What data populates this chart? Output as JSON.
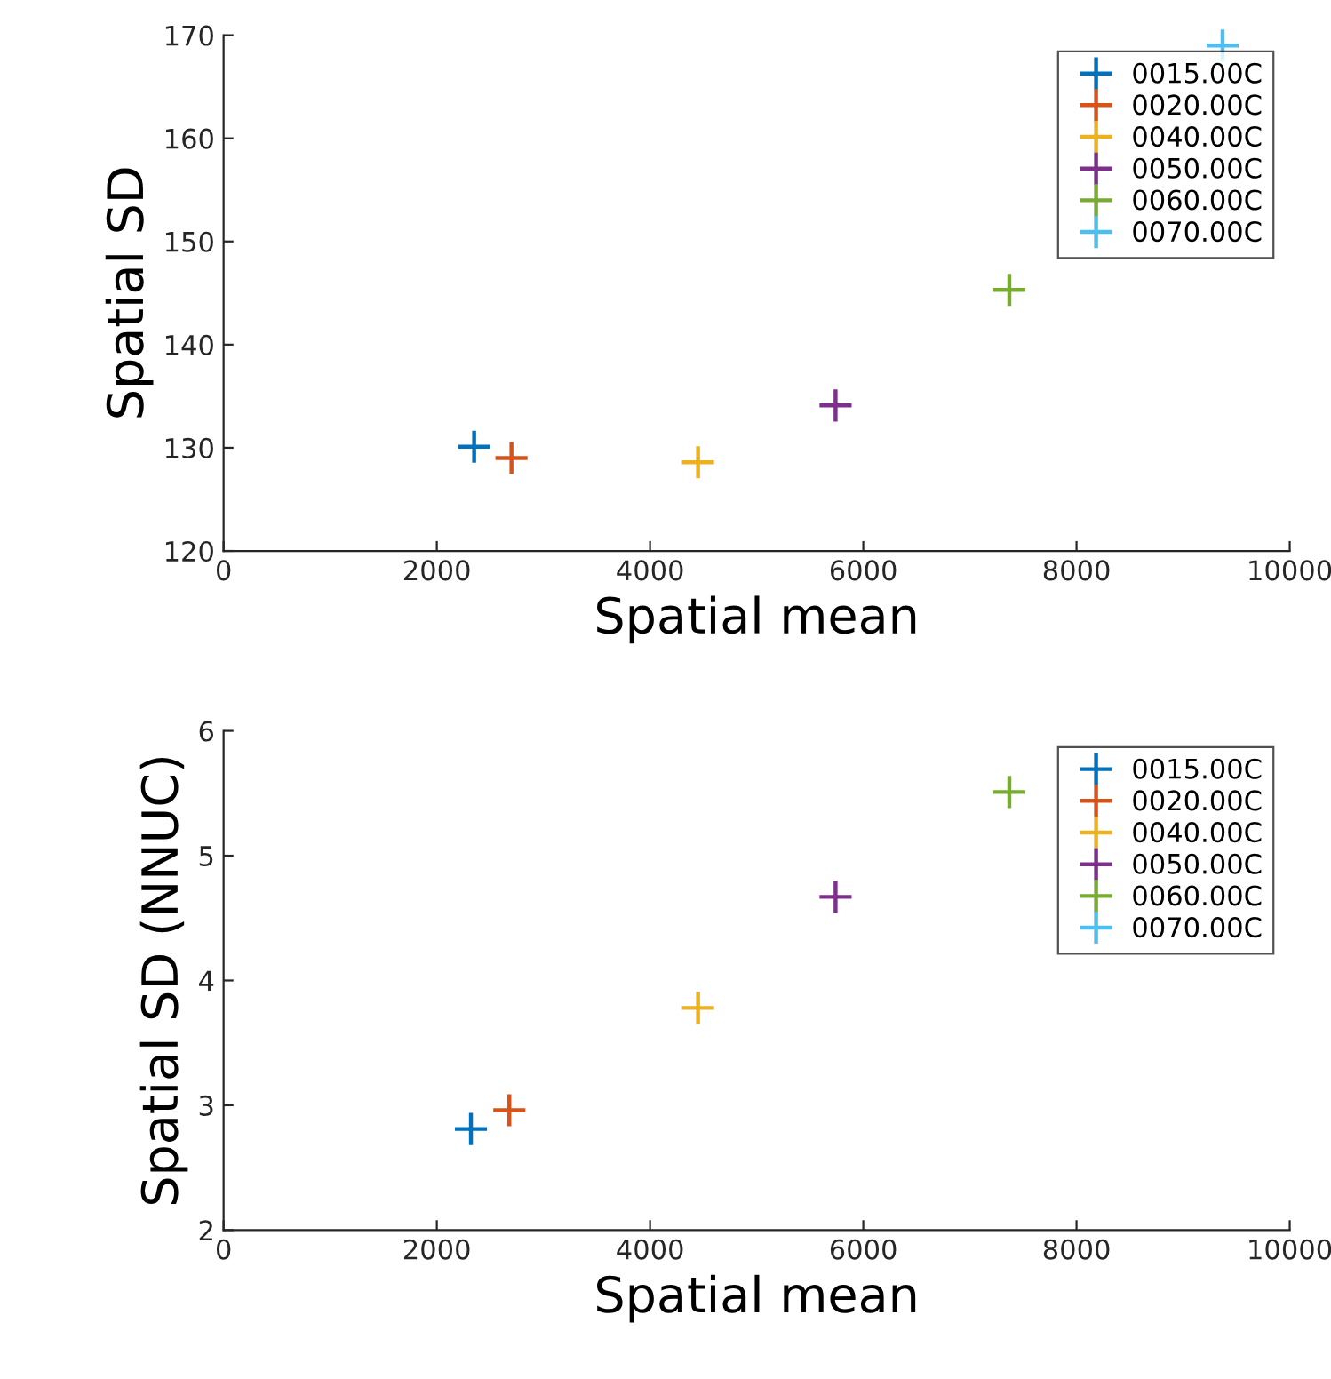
{
  "chart_data": [
    {
      "type": "scatter",
      "xlabel": "Spatial mean",
      "ylabel": "Spatial SD",
      "xlim": [
        0,
        10000
      ],
      "xticks": [
        0,
        2000,
        4000,
        6000,
        8000,
        10000
      ],
      "ylim": [
        120,
        170
      ],
      "yticks": [
        120,
        130,
        140,
        150,
        160,
        170
      ],
      "grid": false,
      "legend": "top right",
      "marker": "cross",
      "series": [
        {
          "name": "0015.00C",
          "color": "#0072bd",
          "x": [
            2350
          ],
          "values": [
            130.1
          ]
        },
        {
          "name": "0020.00C",
          "color": "#d95319",
          "x": [
            2700
          ],
          "values": [
            129.0
          ]
        },
        {
          "name": "0040.00C",
          "color": "#edb120",
          "x": [
            4450
          ],
          "values": [
            128.6
          ]
        },
        {
          "name": "0050.00C",
          "color": "#7e2f8e",
          "x": [
            5740
          ],
          "values": [
            134.1
          ]
        },
        {
          "name": "0060.00C",
          "color": "#77ac30",
          "x": [
            7370
          ],
          "values": [
            145.3
          ]
        },
        {
          "name": "0070.00C",
          "color": "#4dbeee",
          "x": [
            9370
          ],
          "values": [
            169
          ]
        }
      ]
    },
    {
      "type": "scatter",
      "xlabel": "Spatial mean",
      "ylabel": "Spatial SD (NNUC)",
      "xlim": [
        0,
        10000
      ],
      "xticks": [
        0,
        2000,
        4000,
        6000,
        8000,
        10000
      ],
      "ylim": [
        2,
        6
      ],
      "yticks": [
        2,
        3,
        4,
        5,
        6
      ],
      "grid": false,
      "legend": "top right",
      "marker": "cross",
      "series": [
        {
          "name": "0015.00C",
          "color": "#0072bd",
          "x": [
            2320
          ],
          "values": [
            2.81
          ]
        },
        {
          "name": "0020.00C",
          "color": "#d95319",
          "x": [
            2680
          ],
          "values": [
            2.96
          ]
        },
        {
          "name": "0040.00C",
          "color": "#edb120",
          "x": [
            4450
          ],
          "values": [
            3.78
          ]
        },
        {
          "name": "0050.00C",
          "color": "#7e2f8e",
          "x": [
            5740
          ],
          "values": [
            4.67
          ]
        },
        {
          "name": "0060.00C",
          "color": "#77ac30",
          "x": [
            7370
          ],
          "values": [
            5.51
          ]
        },
        {
          "name": "0070.00C",
          "color": "#4dbeee",
          "x": [
            null
          ],
          "values": [
            null
          ]
        }
      ]
    }
  ]
}
